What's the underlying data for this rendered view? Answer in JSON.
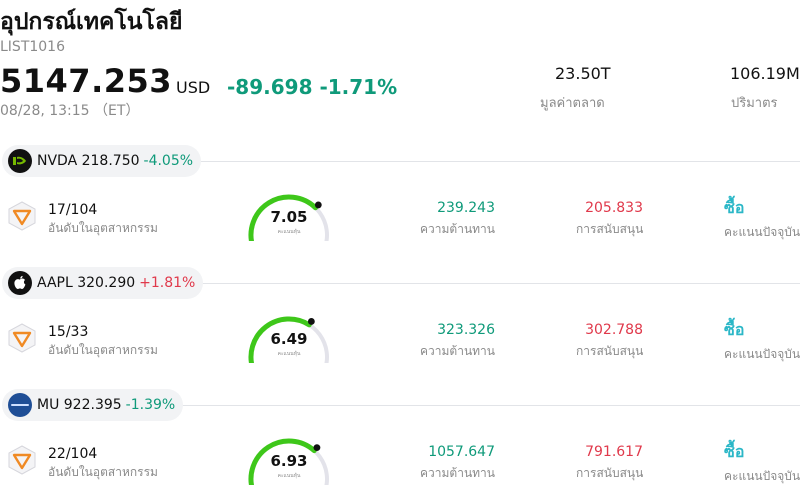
{
  "header": {
    "title": "อุปกรณ์เทคโนโลยี",
    "code": "LIST1016",
    "price": "5147.253",
    "currency": "USD",
    "change": "-89.698 -1.71%",
    "time": "08/28, 13:15 （ET）",
    "market_cap_value": "23.50T",
    "market_cap_label": "มูลค่าตลาด",
    "volume_value": "106.19M",
    "volume_label": "ปริมาตร"
  },
  "colors": {
    "up": "#e0394b",
    "down": "#0f9a7a",
    "gauge_fill": "#3ec71a",
    "gauge_track": "#e3e3ea",
    "rating": "#2bb7c7"
  },
  "labels": {
    "rank_label": "อันดับในอุตสาหกรรม",
    "score_label": "คะแนนหุ้น",
    "resistance_label": "ความต้านทาน",
    "support_label": "การสนับสนุน",
    "rating_label": "คะแนนปัจจุบัน"
  },
  "stocks": [
    {
      "symbol_price": "NVDA 218.750",
      "change": "-4.05%",
      "direction": "down",
      "logo": "nvidia-logo",
      "rank": "17/104",
      "score": "7.05",
      "score_fraction": 0.705,
      "resistance": "239.243",
      "support": "205.833",
      "rating": "ซื้อ"
    },
    {
      "symbol_price": "AAPL 320.290",
      "change": "+1.81%",
      "direction": "up",
      "logo": "apple-logo",
      "rank": "15/33",
      "score": "6.49",
      "score_fraction": 0.649,
      "resistance": "323.326",
      "support": "302.788",
      "rating": "ซื้อ"
    },
    {
      "symbol_price": "MU 922.395",
      "change": "-1.39%",
      "direction": "down",
      "logo": "micron-logo",
      "rank": "22/104",
      "score": "6.93",
      "score_fraction": 0.693,
      "resistance": "1057.647",
      "support": "791.617",
      "rating": "ซื้อ"
    }
  ]
}
